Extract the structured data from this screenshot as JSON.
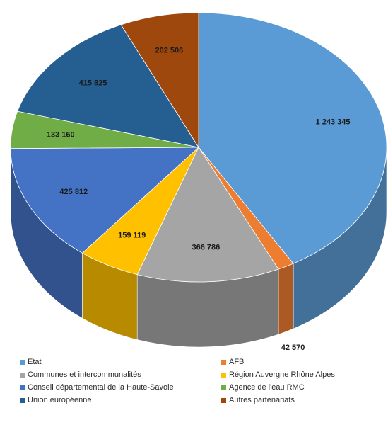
{
  "chart_data": {
    "type": "pie",
    "title": "",
    "three_d": true,
    "legend_position": "bottom",
    "categories": [
      "Etat",
      "AFB",
      "Communes et intercommunalités",
      "Région Auvergne Rhône Alpes",
      "Conseil départemental de la Haute-Savoie",
      "Agence de l'eau RMC",
      "Union européenne",
      "Autres partenariats"
    ],
    "values": [
      1243345,
      42570,
      366786,
      159119,
      425812,
      133160,
      415825,
      202506
    ],
    "value_labels": [
      "1 243 345",
      "42 570",
      "366 786",
      "159 119",
      "425 812",
      "133 160",
      "415 825",
      "202 506"
    ],
    "colors": [
      "#5b9bd5",
      "#ed7d31",
      "#a5a5a5",
      "#ffc000",
      "#4472c4",
      "#70ad47",
      "#255e91",
      "#9e480e"
    ],
    "legend_order": [
      0,
      1,
      2,
      3,
      4,
      5,
      6,
      7
    ]
  }
}
